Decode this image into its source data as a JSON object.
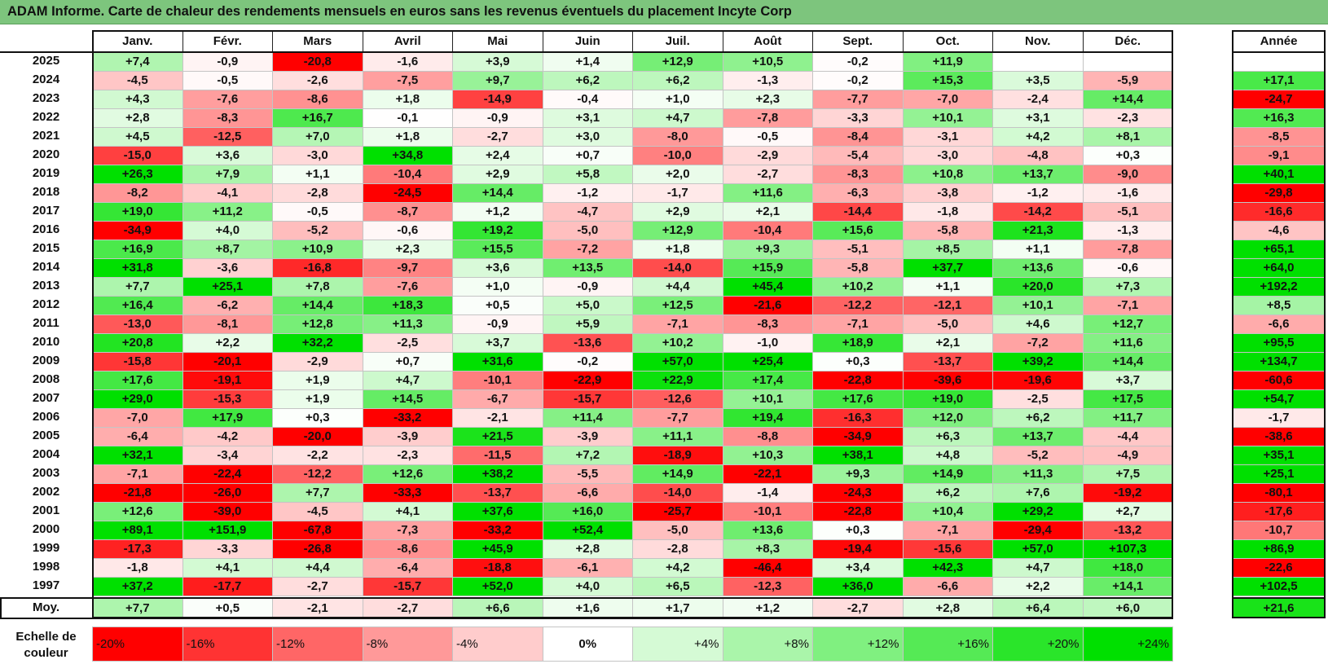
{
  "title": "ADAM Informe. Carte de chaleur des rendements mensuels en euros sans les revenus éventuels du placement Incyte Corp",
  "chart_data": {
    "type": "heatmap",
    "title": "ADAM Informe. Carte de chaleur des rendements mensuels en euros sans les revenus éventuels du placement Incyte Corp",
    "columns": [
      "Janv.",
      "Févr.",
      "Mars",
      "Avril",
      "Mai",
      "Juin",
      "Juil.",
      "Août",
      "Sept.",
      "Oct.",
      "Nov.",
      "Déc."
    ],
    "year_column": "Année",
    "rows": [
      {
        "year": "2025",
        "months": [
          "+7,4",
          "-0,9",
          "-20,8",
          "-1,6",
          "+3,9",
          "+1,4",
          "+12,9",
          "+10,5",
          "-0,2",
          "+11,9",
          "",
          ""
        ],
        "annual": ""
      },
      {
        "year": "2024",
        "months": [
          "-4,5",
          "-0,5",
          "-2,6",
          "-7,5",
          "+9,7",
          "+6,2",
          "+6,2",
          "-1,3",
          "-0,2",
          "+15,3",
          "+3,5",
          "-5,9"
        ],
        "annual": "+17,1"
      },
      {
        "year": "2023",
        "months": [
          "+4,3",
          "-7,6",
          "-8,6",
          "+1,8",
          "-14,9",
          "-0,4",
          "+1,0",
          "+2,3",
          "-7,7",
          "-7,0",
          "-2,4",
          "+14,4"
        ],
        "annual": "-24,7"
      },
      {
        "year": "2022",
        "months": [
          "+2,8",
          "-8,3",
          "+16,7",
          "-0,1",
          "-0,9",
          "+3,1",
          "+4,7",
          "-7,8",
          "-3,3",
          "+10,1",
          "+3,1",
          "-2,3"
        ],
        "annual": "+16,3"
      },
      {
        "year": "2021",
        "months": [
          "+4,5",
          "-12,5",
          "+7,0",
          "+1,8",
          "-2,7",
          "+3,0",
          "-8,0",
          "-0,5",
          "-8,4",
          "-3,1",
          "+4,2",
          "+8,1"
        ],
        "annual": "-8,5"
      },
      {
        "year": "2020",
        "months": [
          "-15,0",
          "+3,6",
          "-3,0",
          "+34,8",
          "+2,4",
          "+0,7",
          "-10,0",
          "-2,9",
          "-5,4",
          "-3,0",
          "-4,8",
          "+0,3"
        ],
        "annual": "-9,1"
      },
      {
        "year": "2019",
        "months": [
          "+26,3",
          "+7,9",
          "+1,1",
          "-10,4",
          "+2,9",
          "+5,8",
          "+2,0",
          "-2,7",
          "-8,3",
          "+10,8",
          "+13,7",
          "-9,0"
        ],
        "annual": "+40,1"
      },
      {
        "year": "2018",
        "months": [
          "-8,2",
          "-4,1",
          "-2,8",
          "-24,5",
          "+14,4",
          "-1,2",
          "-1,7",
          "+11,6",
          "-6,3",
          "-3,8",
          "-1,2",
          "-1,6"
        ],
        "annual": "-29,8"
      },
      {
        "year": "2017",
        "months": [
          "+19,0",
          "+11,2",
          "-0,5",
          "-8,7",
          "+1,2",
          "-4,7",
          "+2,9",
          "+2,1",
          "-14,4",
          "-1,8",
          "-14,2",
          "-5,1"
        ],
        "annual": "-16,6"
      },
      {
        "year": "2016",
        "months": [
          "-34,9",
          "+4,0",
          "-5,2",
          "-0,6",
          "+19,2",
          "-5,0",
          "+12,9",
          "-10,4",
          "+15,6",
          "-5,8",
          "+21,3",
          "-1,3"
        ],
        "annual": "-4,6"
      },
      {
        "year": "2015",
        "months": [
          "+16,9",
          "+8,7",
          "+10,9",
          "+2,3",
          "+15,5",
          "-7,2",
          "+1,8",
          "+9,3",
          "-5,1",
          "+8,5",
          "+1,1",
          "-7,8"
        ],
        "annual": "+65,1"
      },
      {
        "year": "2014",
        "months": [
          "+31,8",
          "-3,6",
          "-16,8",
          "-9,7",
          "+3,6",
          "+13,5",
          "-14,0",
          "+15,9",
          "-5,8",
          "+37,7",
          "+13,6",
          "-0,6"
        ],
        "annual": "+64,0"
      },
      {
        "year": "2013",
        "months": [
          "+7,7",
          "+25,1",
          "+7,8",
          "-7,6",
          "+1,0",
          "-0,9",
          "+4,4",
          "+45,4",
          "+10,2",
          "+1,1",
          "+20,0",
          "+7,3"
        ],
        "annual": "+192,2"
      },
      {
        "year": "2012",
        "months": [
          "+16,4",
          "-6,2",
          "+14,4",
          "+18,3",
          "+0,5",
          "+5,0",
          "+12,5",
          "-21,6",
          "-12,2",
          "-12,1",
          "+10,1",
          "-7,1"
        ],
        "annual": "+8,5"
      },
      {
        "year": "2011",
        "months": [
          "-13,0",
          "-8,1",
          "+12,8",
          "+11,3",
          "-0,9",
          "+5,9",
          "-7,1",
          "-8,3",
          "-7,1",
          "-5,0",
          "+4,6",
          "+12,7"
        ],
        "annual": "-6,6"
      },
      {
        "year": "2010",
        "months": [
          "+20,8",
          "+2,2",
          "+32,2",
          "-2,5",
          "+3,7",
          "-13,6",
          "+10,2",
          "-1,0",
          "+18,9",
          "+2,1",
          "-7,2",
          "+11,6"
        ],
        "annual": "+95,5"
      },
      {
        "year": "2009",
        "months": [
          "-15,8",
          "-20,1",
          "-2,9",
          "+0,7",
          "+31,6",
          "-0,2",
          "+57,0",
          "+25,4",
          "+0,3",
          "-13,7",
          "+39,2",
          "+14,4"
        ],
        "annual": "+134,7"
      },
      {
        "year": "2008",
        "months": [
          "+17,6",
          "-19,1",
          "+1,9",
          "+4,7",
          "-10,1",
          "-22,9",
          "+22,9",
          "+17,4",
          "-22,8",
          "-39,6",
          "-19,6",
          "+3,7"
        ],
        "annual": "-60,6"
      },
      {
        "year": "2007",
        "months": [
          "+29,0",
          "-15,3",
          "+1,9",
          "+14,5",
          "-6,7",
          "-15,7",
          "-12,6",
          "+10,1",
          "+17,6",
          "+19,0",
          "-2,5",
          "+17,5"
        ],
        "annual": "+54,7"
      },
      {
        "year": "2006",
        "months": [
          "-7,0",
          "+17,9",
          "+0,3",
          "-33,2",
          "-2,1",
          "+11,4",
          "-7,7",
          "+19,4",
          "-16,3",
          "+12,0",
          "+6,2",
          "+11,7"
        ],
        "annual": "-1,7"
      },
      {
        "year": "2005",
        "months": [
          "-6,4",
          "-4,2",
          "-20,0",
          "-3,9",
          "+21,5",
          "-3,9",
          "+11,1",
          "-8,8",
          "-34,9",
          "+6,3",
          "+13,7",
          "-4,4"
        ],
        "annual": "-38,6"
      },
      {
        "year": "2004",
        "months": [
          "+32,1",
          "-3,4",
          "-2,2",
          "-2,3",
          "-11,5",
          "+7,2",
          "-18,9",
          "+10,3",
          "+38,1",
          "+4,8",
          "-5,2",
          "-4,9"
        ],
        "annual": "+35,1"
      },
      {
        "year": "2003",
        "months": [
          "-7,1",
          "-22,4",
          "-12,2",
          "+12,6",
          "+38,2",
          "-5,5",
          "+14,9",
          "-22,1",
          "+9,3",
          "+14,9",
          "+11,3",
          "+7,5"
        ],
        "annual": "+25,1"
      },
      {
        "year": "2002",
        "months": [
          "-21,8",
          "-26,0",
          "+7,7",
          "-33,3",
          "-13,7",
          "-6,6",
          "-14,0",
          "-1,4",
          "-24,3",
          "+6,2",
          "+7,6",
          "-19,2"
        ],
        "annual": "-80,1"
      },
      {
        "year": "2001",
        "months": [
          "+12,6",
          "-39,0",
          "-4,5",
          "+4,1",
          "+37,6",
          "+16,0",
          "-25,7",
          "-10,1",
          "-22,8",
          "+10,4",
          "+29,2",
          "+2,7"
        ],
        "annual": "-17,6"
      },
      {
        "year": "2000",
        "months": [
          "+89,1",
          "+151,9",
          "-67,8",
          "-7,3",
          "-33,2",
          "+52,4",
          "-5,0",
          "+13,6",
          "+0,3",
          "-7,1",
          "-29,4",
          "-13,2"
        ],
        "annual": "-10,7"
      },
      {
        "year": "1999",
        "months": [
          "-17,3",
          "-3,3",
          "-26,8",
          "-8,6",
          "+45,9",
          "+2,8",
          "-2,8",
          "+8,3",
          "-19,4",
          "-15,6",
          "+57,0",
          "+107,3"
        ],
        "annual": "+86,9"
      },
      {
        "year": "1998",
        "months": [
          "-1,8",
          "+4,1",
          "+4,4",
          "-6,4",
          "-18,8",
          "-6,1",
          "+4,2",
          "-46,4",
          "+3,4",
          "+42,3",
          "+4,7",
          "+18,0"
        ],
        "annual": "-22,6"
      },
      {
        "year": "1997",
        "months": [
          "+37,2",
          "-17,7",
          "-2,7",
          "-15,7",
          "+52,0",
          "+4,0",
          "+6,5",
          "-12,3",
          "+36,0",
          "-6,6",
          "+2,2",
          "+14,1"
        ],
        "annual": "+102,5"
      }
    ],
    "average": {
      "label": "Moy.",
      "months": [
        "+7,7",
        "+0,5",
        "-2,1",
        "-2,7",
        "+6,6",
        "+1,6",
        "+1,7",
        "+1,2",
        "-2,7",
        "+2,8",
        "+6,4",
        "+6,0"
      ],
      "annual": "+21,6"
    },
    "color_scale": {
      "label": "Echelle de couleur",
      "steps": [
        "-20%",
        "-16%",
        "-12%",
        "-8%",
        "-4%",
        "0%",
        "+4%",
        "+8%",
        "+12%",
        "+16%",
        "+20%",
        "+24%"
      ],
      "negative_color": "#ff0000",
      "positive_color": "#00e000",
      "neutral_color": "#ffffff"
    }
  }
}
